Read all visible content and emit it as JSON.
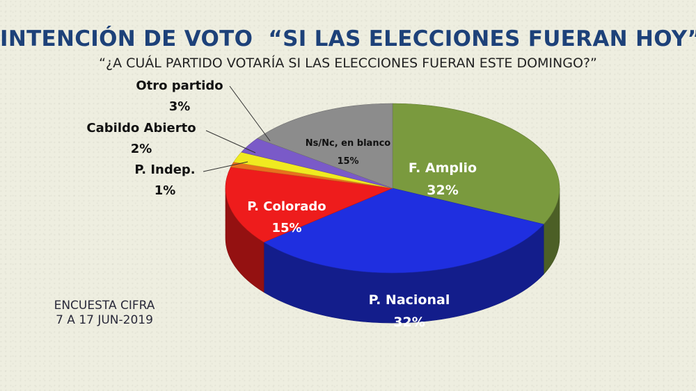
{
  "title": "INTENCIÓN DE VOTO  “SI LAS ELECCIONES FUERAN HOY”",
  "subtitle": "“¿A CUÁL PARTIDO VOTARÍA SI LAS ELECCIONES FUERAN ESTE DOMINGO?”",
  "source": {
    "line1": "ENCUESTA CIFRA",
    "line2": "7 A 17 JUN-2019"
  },
  "chart_data": {
    "type": "pie",
    "title": "INTENCIÓN DE VOTO  “SI LAS ELECCIONES FUERAN HOY”",
    "subtitle": "“¿A CUÁL PARTIDO VOTARÍA SI LAS ELECCIONES FUERAN ESTE DOMINGO?”",
    "unit": "%",
    "slices": [
      {
        "name": "F. Amplio",
        "value": 32,
        "label": "32%",
        "color": "#7a9a3e"
      },
      {
        "name": "P. Nacional",
        "value": 32,
        "label": "32%",
        "color": "#1f2fe0"
      },
      {
        "name": "P. Colorado",
        "value": 15,
        "label": "15%",
        "color": "#ee1c1c"
      },
      {
        "name": "P. Indep.",
        "value": 1,
        "label": "1%",
        "color": "#e8701e"
      },
      {
        "name": "Cabildo Abierto",
        "value": 2,
        "label": "2%",
        "color": "#f0ea20"
      },
      {
        "name": "Otro partido",
        "value": 3,
        "label": "3%",
        "color": "#7a5ac8"
      },
      {
        "name": "Ns/Nc, en blanco",
        "value": 15,
        "label": "15%",
        "color": "#8c8c8c"
      }
    ]
  }
}
